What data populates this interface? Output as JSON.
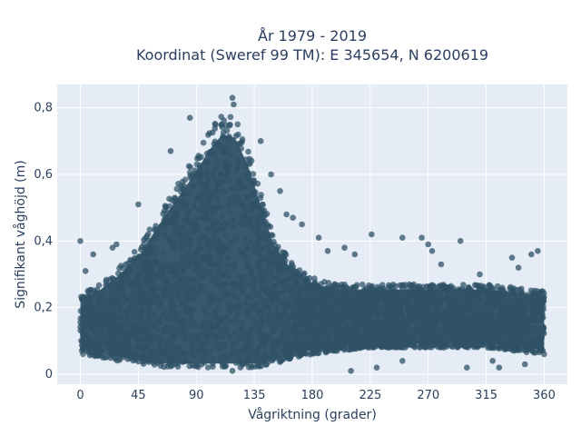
{
  "chart_data": {
    "type": "scatter",
    "title_lines": [
      "År 1979 - 2019",
      "Koordinat (Sweref 99 TM): E 345654, N 6200619"
    ],
    "xlabel": "Vågriktning (grader)",
    "ylabel": "Signifikant våghöjd (m)",
    "xlim": [
      -18,
      378
    ],
    "ylim": [
      -0.03,
      0.87
    ],
    "x_ticks": [
      0,
      45,
      90,
      135,
      180,
      225,
      270,
      315,
      360
    ],
    "y_ticks": [
      0,
      0.2,
      0.4,
      0.6,
      0.8
    ],
    "y_tick_labels": [
      "0",
      "0,2",
      "0,4",
      "0,6",
      "0,8"
    ],
    "grid": true,
    "marker_color": "#2f5266",
    "envelope_note": "Dense cloud of 41 years of hourly observations; approximate distribution by direction bin",
    "density_envelope": {
      "x": [
        0,
        15,
        30,
        45,
        60,
        75,
        90,
        100,
        110,
        120,
        130,
        140,
        150,
        165,
        180,
        200,
        225,
        270,
        315,
        360
      ],
      "y_low": [
        0.06,
        0.05,
        0.04,
        0.03,
        0.02,
        0.02,
        0.02,
        0.02,
        0.02,
        0.02,
        0.02,
        0.02,
        0.03,
        0.05,
        0.06,
        0.07,
        0.08,
        0.08,
        0.08,
        0.06
      ],
      "y_high": [
        0.24,
        0.27,
        0.32,
        0.38,
        0.48,
        0.57,
        0.66,
        0.73,
        0.78,
        0.77,
        0.68,
        0.55,
        0.42,
        0.33,
        0.29,
        0.27,
        0.27,
        0.27,
        0.27,
        0.25
      ]
    },
    "outliers": [
      {
        "x": 0,
        "y": 0.4
      },
      {
        "x": 4,
        "y": 0.31
      },
      {
        "x": 10,
        "y": 0.36
      },
      {
        "x": 25,
        "y": 0.38
      },
      {
        "x": 28,
        "y": 0.39
      },
      {
        "x": 45,
        "y": 0.51
      },
      {
        "x": 70,
        "y": 0.67
      },
      {
        "x": 85,
        "y": 0.77
      },
      {
        "x": 118,
        "y": 0.83
      },
      {
        "x": 119,
        "y": 0.81
      },
      {
        "x": 140,
        "y": 0.7
      },
      {
        "x": 148,
        "y": 0.6
      },
      {
        "x": 155,
        "y": 0.55
      },
      {
        "x": 160,
        "y": 0.48
      },
      {
        "x": 165,
        "y": 0.47
      },
      {
        "x": 172,
        "y": 0.45
      },
      {
        "x": 185,
        "y": 0.41
      },
      {
        "x": 192,
        "y": 0.37
      },
      {
        "x": 205,
        "y": 0.38
      },
      {
        "x": 213,
        "y": 0.36
      },
      {
        "x": 226,
        "y": 0.42
      },
      {
        "x": 250,
        "y": 0.41
      },
      {
        "x": 265,
        "y": 0.41
      },
      {
        "x": 270,
        "y": 0.39
      },
      {
        "x": 273,
        "y": 0.37
      },
      {
        "x": 280,
        "y": 0.33
      },
      {
        "x": 295,
        "y": 0.4
      },
      {
        "x": 310,
        "y": 0.3
      },
      {
        "x": 335,
        "y": 0.35
      },
      {
        "x": 340,
        "y": 0.32
      },
      {
        "x": 350,
        "y": 0.36
      },
      {
        "x": 355,
        "y": 0.37
      },
      {
        "x": 210,
        "y": 0.01
      },
      {
        "x": 230,
        "y": 0.02
      },
      {
        "x": 250,
        "y": 0.04
      },
      {
        "x": 300,
        "y": 0.02
      },
      {
        "x": 320,
        "y": 0.04
      },
      {
        "x": 325,
        "y": 0.02
      },
      {
        "x": 345,
        "y": 0.03
      },
      {
        "x": 118,
        "y": 0.01
      }
    ]
  }
}
